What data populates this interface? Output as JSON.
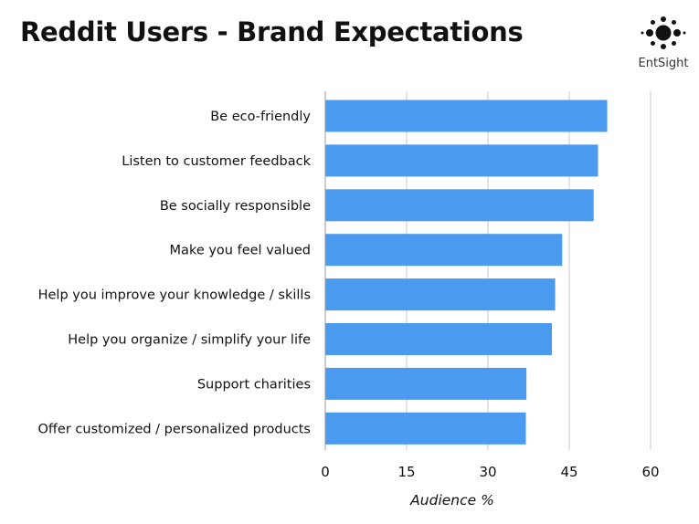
{
  "title": "Reddit Users - Brand Expectations",
  "logo": {
    "text": "EntSight",
    "icon": "dot-cluster-logo-icon"
  },
  "colors": {
    "bar": "#4a9bf0",
    "grid": "#c8c8c8",
    "axis": "#999999",
    "text": "#111111"
  },
  "chart_data": {
    "type": "bar",
    "orientation": "horizontal",
    "categories": [
      "Be eco-friendly",
      "Listen to customer feedback",
      "Be socially responsible",
      "Make you feel valued",
      "Help you improve your knowledge / skills",
      "Help you organize / simplify your life",
      "Support charities",
      "Offer customized / personalized products"
    ],
    "values": [
      52,
      50.3,
      49.5,
      43.7,
      42.4,
      41.8,
      37.1,
      37
    ],
    "xlabel": "Audience %",
    "ylabel": "",
    "xlim": [
      0,
      60
    ],
    "xticks": [
      0,
      15,
      30,
      45,
      60
    ],
    "xtick_labels": [
      "0",
      "15",
      "30",
      "45",
      "60"
    ],
    "grid": true
  }
}
